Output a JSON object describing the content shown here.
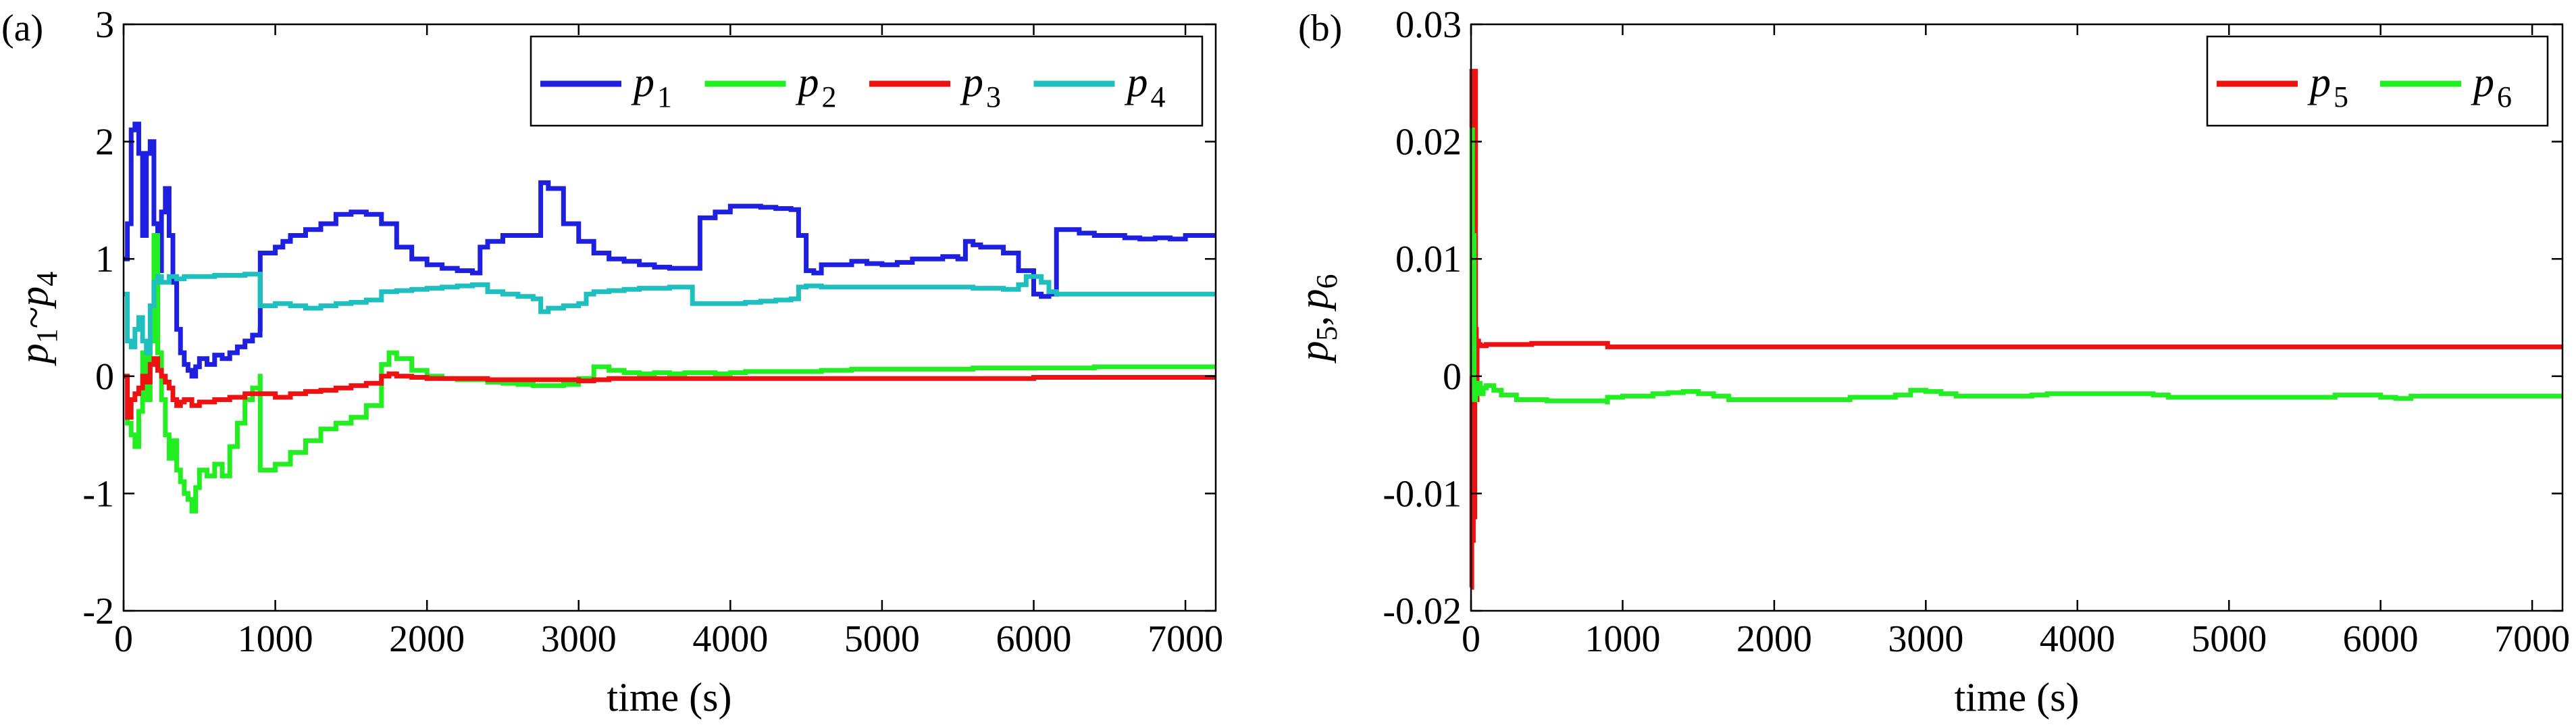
{
  "chart_data": [
    {
      "type": "line",
      "panel_label": "(a)",
      "xlabel": "time (s)",
      "ylabel": {
        "p1": "p",
        "s1": "1",
        "tilde": "~",
        "p2": "p",
        "s2": "4"
      },
      "xlim": [
        0,
        7200
      ],
      "ylim": [
        -2,
        3
      ],
      "xticks": [
        0,
        1000,
        2000,
        3000,
        4000,
        5000,
        6000,
        7000
      ],
      "xtick_labels": [
        "0",
        "1000",
        "2000",
        "3000",
        "4000",
        "5000",
        "6000",
        "7000"
      ],
      "yticks": [
        -2,
        -1,
        0,
        1,
        2,
        3
      ],
      "ytick_labels": [
        "-2",
        "-1",
        "0",
        "1",
        "2",
        "3"
      ],
      "legend_position": "top-right",
      "series": [
        {
          "name": "p1",
          "base": "p",
          "sub": "1",
          "color": "#1f1fe0",
          "x": [
            0,
            25,
            50,
            75,
            100,
            125,
            150,
            175,
            200,
            225,
            250,
            275,
            300,
            325,
            350,
            375,
            400,
            425,
            450,
            475,
            500,
            550,
            600,
            650,
            700,
            750,
            800,
            850,
            900,
            901,
            1000,
            1050,
            1100,
            1150,
            1200,
            1300,
            1400,
            1500,
            1600,
            1700,
            1800,
            1900,
            2000,
            2100,
            2200,
            2300,
            2350,
            2400,
            2500,
            2600,
            2700,
            2750,
            2800,
            2900,
            3000,
            3100,
            3200,
            3300,
            3400,
            3500,
            3600,
            3700,
            3800,
            3900,
            4000,
            4100,
            4200,
            4300,
            4400,
            4450,
            4500,
            4550,
            4600,
            4700,
            4800,
            4900,
            5000,
            5100,
            5200,
            5300,
            5400,
            5500,
            5550,
            5600,
            5650,
            5700,
            5800,
            5900,
            6000,
            6050,
            6100,
            6150,
            6200,
            6300,
            6400,
            6500,
            6600,
            6700,
            6800,
            6900,
            7000,
            7100,
            7200
          ],
          "y": [
            1.0,
            1.3,
            2.1,
            2.15,
            1.9,
            1.2,
            1.9,
            2.0,
            1.3,
            0.9,
            1.4,
            1.6,
            1.2,
            0.8,
            0.4,
            0.2,
            0.1,
            0.05,
            0.0,
            0.08,
            0.15,
            0.1,
            0.18,
            0.15,
            0.2,
            0.25,
            0.3,
            0.35,
            0.4,
            1.05,
            1.1,
            1.15,
            1.2,
            1.2,
            1.25,
            1.3,
            1.38,
            1.4,
            1.38,
            1.3,
            1.1,
            1.0,
            0.95,
            0.92,
            0.9,
            0.88,
            1.1,
            1.15,
            1.2,
            1.2,
            1.2,
            1.65,
            1.6,
            1.3,
            1.15,
            1.05,
            1.0,
            0.98,
            0.95,
            0.93,
            0.92,
            0.92,
            1.35,
            1.4,
            1.45,
            1.45,
            1.44,
            1.43,
            1.42,
            1.2,
            0.9,
            0.88,
            0.95,
            0.95,
            0.98,
            0.96,
            0.95,
            0.97,
            1.0,
            1.0,
            1.02,
            1.0,
            1.15,
            1.12,
            1.1,
            1.1,
            1.05,
            0.9,
            0.7,
            0.68,
            0.7,
            1.25,
            1.25,
            1.22,
            1.2,
            1.2,
            1.18,
            1.17,
            1.18,
            1.17,
            1.2,
            1.2,
            1.2
          ]
        },
        {
          "name": "p2",
          "base": "p",
          "sub": "2",
          "color": "#22ee22",
          "x": [
            0,
            25,
            50,
            75,
            100,
            125,
            150,
            175,
            200,
            225,
            250,
            275,
            300,
            325,
            350,
            375,
            400,
            425,
            450,
            475,
            500,
            550,
            600,
            650,
            700,
            750,
            800,
            850,
            900,
            901,
            1000,
            1100,
            1200,
            1300,
            1400,
            1500,
            1600,
            1700,
            1750,
            1800,
            1900,
            2000,
            2100,
            2200,
            2300,
            2400,
            2500,
            2600,
            2700,
            2800,
            2900,
            3000,
            3100,
            3200,
            3300,
            3400,
            3500,
            3600,
            3700,
            3800,
            3900,
            4000,
            4100,
            4200,
            4300,
            4400,
            4500,
            4600,
            4700,
            4800,
            4900,
            5000,
            5200,
            5400,
            5600,
            5800,
            6000,
            6200,
            6400,
            6600,
            6800,
            7000,
            7200
          ],
          "y": [
            0.0,
            -0.4,
            -0.5,
            -0.6,
            -0.3,
            0.2,
            -0.2,
            0.3,
            1.2,
            0.2,
            -0.2,
            -0.5,
            -0.7,
            -0.55,
            -0.8,
            -0.9,
            -1.0,
            -1.05,
            -1.15,
            -0.95,
            -0.8,
            -0.85,
            -0.75,
            -0.85,
            -0.6,
            -0.4,
            -0.2,
            -0.1,
            0.0,
            -0.8,
            -0.75,
            -0.65,
            -0.55,
            -0.45,
            -0.4,
            -0.35,
            -0.25,
            0.1,
            0.2,
            0.15,
            0.05,
            0.0,
            -0.02,
            -0.03,
            -0.03,
            -0.05,
            -0.06,
            -0.07,
            -0.08,
            -0.08,
            -0.07,
            -0.02,
            0.08,
            0.05,
            0.03,
            0.02,
            0.03,
            0.02,
            0.03,
            0.03,
            0.02,
            0.03,
            0.04,
            0.04,
            0.04,
            0.04,
            0.04,
            0.05,
            0.05,
            0.06,
            0.06,
            0.06,
            0.06,
            0.06,
            0.07,
            0.07,
            0.07,
            0.07,
            0.08,
            0.08,
            0.08,
            0.08,
            0.08
          ]
        },
        {
          "name": "p3",
          "base": "p",
          "sub": "3",
          "color": "#ee1111",
          "x": [
            0,
            25,
            50,
            75,
            100,
            125,
            150,
            175,
            200,
            225,
            250,
            275,
            300,
            325,
            350,
            375,
            400,
            450,
            500,
            600,
            700,
            800,
            900,
            1000,
            1100,
            1200,
            1300,
            1400,
            1500,
            1600,
            1700,
            1750,
            1800,
            1900,
            2000,
            2200,
            2400,
            2600,
            2800,
            3000,
            3100,
            3200,
            3400,
            3600,
            3800,
            4000,
            4200,
            4400,
            4600,
            4800,
            5000,
            5200,
            5400,
            5600,
            5800,
            6000,
            6200,
            6400,
            6600,
            6800,
            7000,
            7200
          ],
          "y": [
            0.0,
            -0.35,
            -0.2,
            -0.15,
            -0.1,
            0.0,
            -0.05,
            0.1,
            0.15,
            0.05,
            0.0,
            -0.05,
            -0.1,
            -0.2,
            -0.25,
            -0.22,
            -0.2,
            -0.25,
            -0.22,
            -0.2,
            -0.18,
            -0.15,
            -0.15,
            -0.18,
            -0.15,
            -0.13,
            -0.12,
            -0.1,
            -0.08,
            -0.06,
            0.0,
            0.02,
            0.0,
            -0.01,
            -0.02,
            -0.02,
            -0.03,
            -0.03,
            -0.03,
            -0.04,
            -0.03,
            -0.02,
            -0.02,
            -0.02,
            -0.02,
            -0.02,
            -0.02,
            -0.02,
            -0.02,
            -0.02,
            -0.02,
            -0.02,
            -0.02,
            -0.02,
            -0.02,
            -0.01,
            -0.01,
            -0.01,
            -0.01,
            -0.01,
            -0.01,
            -0.01
          ]
        },
        {
          "name": "p4",
          "base": "p",
          "sub": "4",
          "color": "#1fbfbf",
          "x": [
            0,
            25,
            50,
            75,
            100,
            125,
            150,
            175,
            200,
            225,
            250,
            300,
            350,
            400,
            500,
            600,
            700,
            800,
            850,
            899,
            900,
            1000,
            1100,
            1200,
            1300,
            1400,
            1500,
            1600,
            1700,
            1800,
            1900,
            2000,
            2100,
            2200,
            2300,
            2400,
            2500,
            2600,
            2700,
            2750,
            2800,
            2900,
            3000,
            3050,
            3100,
            3200,
            3300,
            3400,
            3500,
            3600,
            3700,
            3750,
            3800,
            3900,
            4000,
            4100,
            4200,
            4300,
            4400,
            4450,
            4500,
            4600,
            4800,
            5000,
            5200,
            5400,
            5600,
            5800,
            5900,
            5950,
            6000,
            6050,
            6100,
            6150,
            6200,
            6400,
            6600,
            6800,
            7000,
            7200
          ],
          "y": [
            0.7,
            0.3,
            0.25,
            0.4,
            0.5,
            0.3,
            0.2,
            0.6,
            0.8,
            0.85,
            0.8,
            0.85,
            0.83,
            0.85,
            0.85,
            0.86,
            0.86,
            0.87,
            0.87,
            0.87,
            0.6,
            0.62,
            0.6,
            0.58,
            0.6,
            0.62,
            0.63,
            0.65,
            0.72,
            0.73,
            0.74,
            0.75,
            0.76,
            0.77,
            0.78,
            0.72,
            0.7,
            0.68,
            0.66,
            0.55,
            0.58,
            0.6,
            0.62,
            0.7,
            0.72,
            0.73,
            0.74,
            0.75,
            0.75,
            0.76,
            0.76,
            0.62,
            0.62,
            0.62,
            0.62,
            0.63,
            0.64,
            0.65,
            0.66,
            0.76,
            0.77,
            0.76,
            0.76,
            0.76,
            0.76,
            0.76,
            0.75,
            0.74,
            0.78,
            0.85,
            0.85,
            0.8,
            0.72,
            0.7,
            0.7,
            0.7,
            0.7,
            0.7,
            0.7,
            0.7
          ]
        }
      ]
    },
    {
      "type": "line",
      "panel_label": "(b)",
      "xlabel": "time (s)",
      "ylabel": {
        "p1": "p",
        "s1": "5",
        "sep": ",",
        "p2": "p",
        "s2": "6"
      },
      "xlim": [
        0,
        7200
      ],
      "ylim": [
        -0.02,
        0.03
      ],
      "xticks": [
        0,
        1000,
        2000,
        3000,
        4000,
        5000,
        6000,
        7000
      ],
      "xtick_labels": [
        "0",
        "1000",
        "2000",
        "3000",
        "4000",
        "5000",
        "6000",
        "7000"
      ],
      "yticks": [
        -0.02,
        -0.01,
        0,
        0.01,
        0.02,
        0.03
      ],
      "ytick_labels": [
        "-0.02",
        "-0.01",
        "0",
        "0.01",
        "0.02",
        "0.03"
      ],
      "legend_position": "top-right",
      "series": [
        {
          "name": "p5",
          "base": "p",
          "sub": "5",
          "color": "#ee1111",
          "x": [
            0,
            5,
            10,
            15,
            20,
            25,
            30,
            35,
            40,
            45,
            50,
            60,
            80,
            100,
            200,
            300,
            400,
            600,
            800,
            900,
            901,
            1200,
            2000,
            3000,
            4000,
            5000,
            6000,
            7000,
            7200
          ],
          "y": [
            -0.018,
            0.026,
            -0.014,
            0.022,
            -0.012,
            0.026,
            0.004,
            -0.002,
            0.003,
            0.003,
            0.0027,
            0.0026,
            0.0026,
            0.0027,
            0.0027,
            0.0027,
            0.0028,
            0.0028,
            0.0028,
            0.0028,
            0.0025,
            0.0025,
            0.0025,
            0.0025,
            0.0025,
            0.0025,
            0.0025,
            0.0025,
            0.0025
          ]
        },
        {
          "name": "p6",
          "base": "p",
          "sub": "6",
          "color": "#22ee22",
          "x": [
            0,
            5,
            10,
            15,
            20,
            25,
            30,
            40,
            50,
            60,
            80,
            100,
            150,
            200,
            300,
            500,
            800,
            899,
            900,
            1000,
            1200,
            1300,
            1400,
            1500,
            1600,
            1700,
            2000,
            2500,
            2800,
            2900,
            3000,
            3100,
            3200,
            3500,
            3700,
            3800,
            4000,
            4500,
            4600,
            5000,
            5500,
            5700,
            5900,
            6000,
            6100,
            6200,
            6500,
            7000,
            7200
          ],
          "y": [
            0.0,
            0.021,
            -0.002,
            0.012,
            -0.001,
            -0.002,
            -0.001,
            -0.0008,
            -0.0006,
            -0.0015,
            -0.001,
            -0.0008,
            -0.0012,
            -0.0016,
            -0.002,
            -0.0021,
            -0.0021,
            -0.0022,
            -0.0018,
            -0.0017,
            -0.0015,
            -0.0014,
            -0.0013,
            -0.0015,
            -0.0017,
            -0.002,
            -0.002,
            -0.0018,
            -0.0016,
            -0.0012,
            -0.0013,
            -0.0015,
            -0.0017,
            -0.0017,
            -0.0016,
            -0.0015,
            -0.0015,
            -0.0016,
            -0.0018,
            -0.0018,
            -0.0018,
            -0.0016,
            -0.0016,
            -0.0018,
            -0.0019,
            -0.0017,
            -0.0017,
            -0.0017,
            -0.0017
          ]
        }
      ]
    }
  ]
}
